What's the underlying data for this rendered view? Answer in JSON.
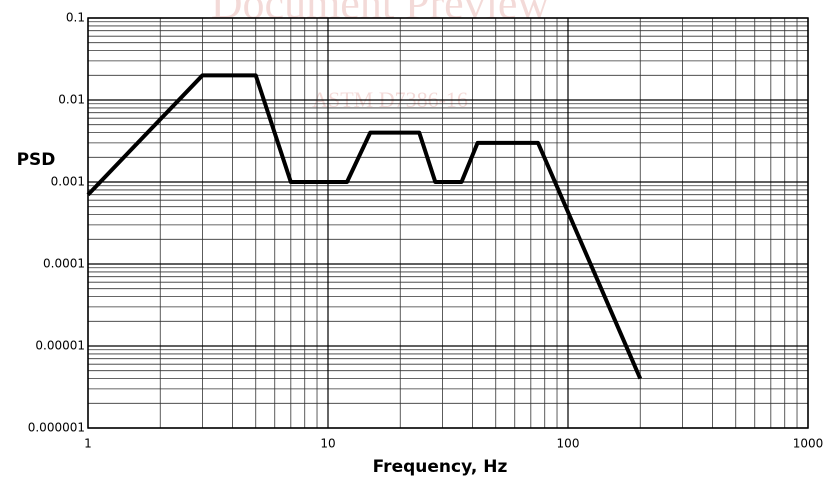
{
  "chart_data": {
    "type": "line",
    "watermarks": [
      "Document Preview",
      "ASTM D7386-16"
    ],
    "xlabel": "Frequency, Hz",
    "ylabel": "PSD",
    "x": [
      1,
      3,
      5,
      7,
      12,
      15,
      24,
      28,
      36,
      42,
      75,
      200
    ],
    "series": [
      {
        "name": "PSD",
        "color": "#000000",
        "values": [
          0.0007,
          0.02,
          0.02,
          0.001,
          0.001,
          0.004,
          0.004,
          0.001,
          0.001,
          0.003,
          0.003,
          4e-06
        ]
      }
    ],
    "xlim": [
      1,
      1000
    ],
    "ylim": [
      1e-06,
      0.1
    ],
    "xticks": [
      1,
      10,
      100,
      1000
    ],
    "yticks": [
      0.1,
      0.01,
      0.001,
      0.0001,
      1e-05,
      1e-06
    ],
    "xscale": "log",
    "yscale": "log",
    "grid": true
  }
}
